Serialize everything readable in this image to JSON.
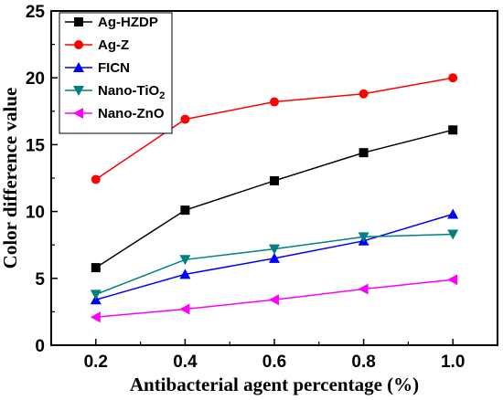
{
  "chart_data": {
    "type": "line",
    "xlabel": "Antibacterial agent percentage (%)",
    "ylabel": "Color difference value",
    "x": [
      0.2,
      0.4,
      0.6,
      0.8,
      1.0
    ],
    "xticks": [
      "0.2",
      "0.4",
      "0.6",
      "0.8",
      "1.0"
    ],
    "yticks": [
      "0",
      "5",
      "10",
      "15",
      "20",
      "25"
    ],
    "xlim": [
      0.1,
      1.1
    ],
    "ylim": [
      0,
      25
    ],
    "grid": false,
    "legend_position": "top-left",
    "series": [
      {
        "name": "Ag-HZDP",
        "name_main": "Ag-HZDP",
        "name_sub": "",
        "color": "#000000",
        "marker": "square",
        "values": [
          5.8,
          10.1,
          12.3,
          14.4,
          16.1
        ]
      },
      {
        "name": "Ag-Z",
        "name_main": "Ag-Z",
        "name_sub": "",
        "color": "#ff0000",
        "marker": "circle",
        "values": [
          12.4,
          16.9,
          18.2,
          18.8,
          20.0
        ]
      },
      {
        "name": "FICN",
        "name_main": "FICN",
        "name_sub": "",
        "color": "#0000ff",
        "marker": "triangle-up",
        "values": [
          3.4,
          5.3,
          6.5,
          7.8,
          9.8
        ]
      },
      {
        "name": "Nano-TiO2",
        "name_main": "Nano-TiO",
        "name_sub": "2",
        "color": "#008080",
        "marker": "triangle-down",
        "values": [
          3.8,
          6.4,
          7.2,
          8.1,
          8.3
        ]
      },
      {
        "name": "Nano-ZnO",
        "name_main": "Nano-ZnO",
        "name_sub": "",
        "color": "#ff00ff",
        "marker": "triangle-left",
        "values": [
          2.1,
          2.7,
          3.4,
          4.2,
          4.9
        ]
      }
    ]
  }
}
